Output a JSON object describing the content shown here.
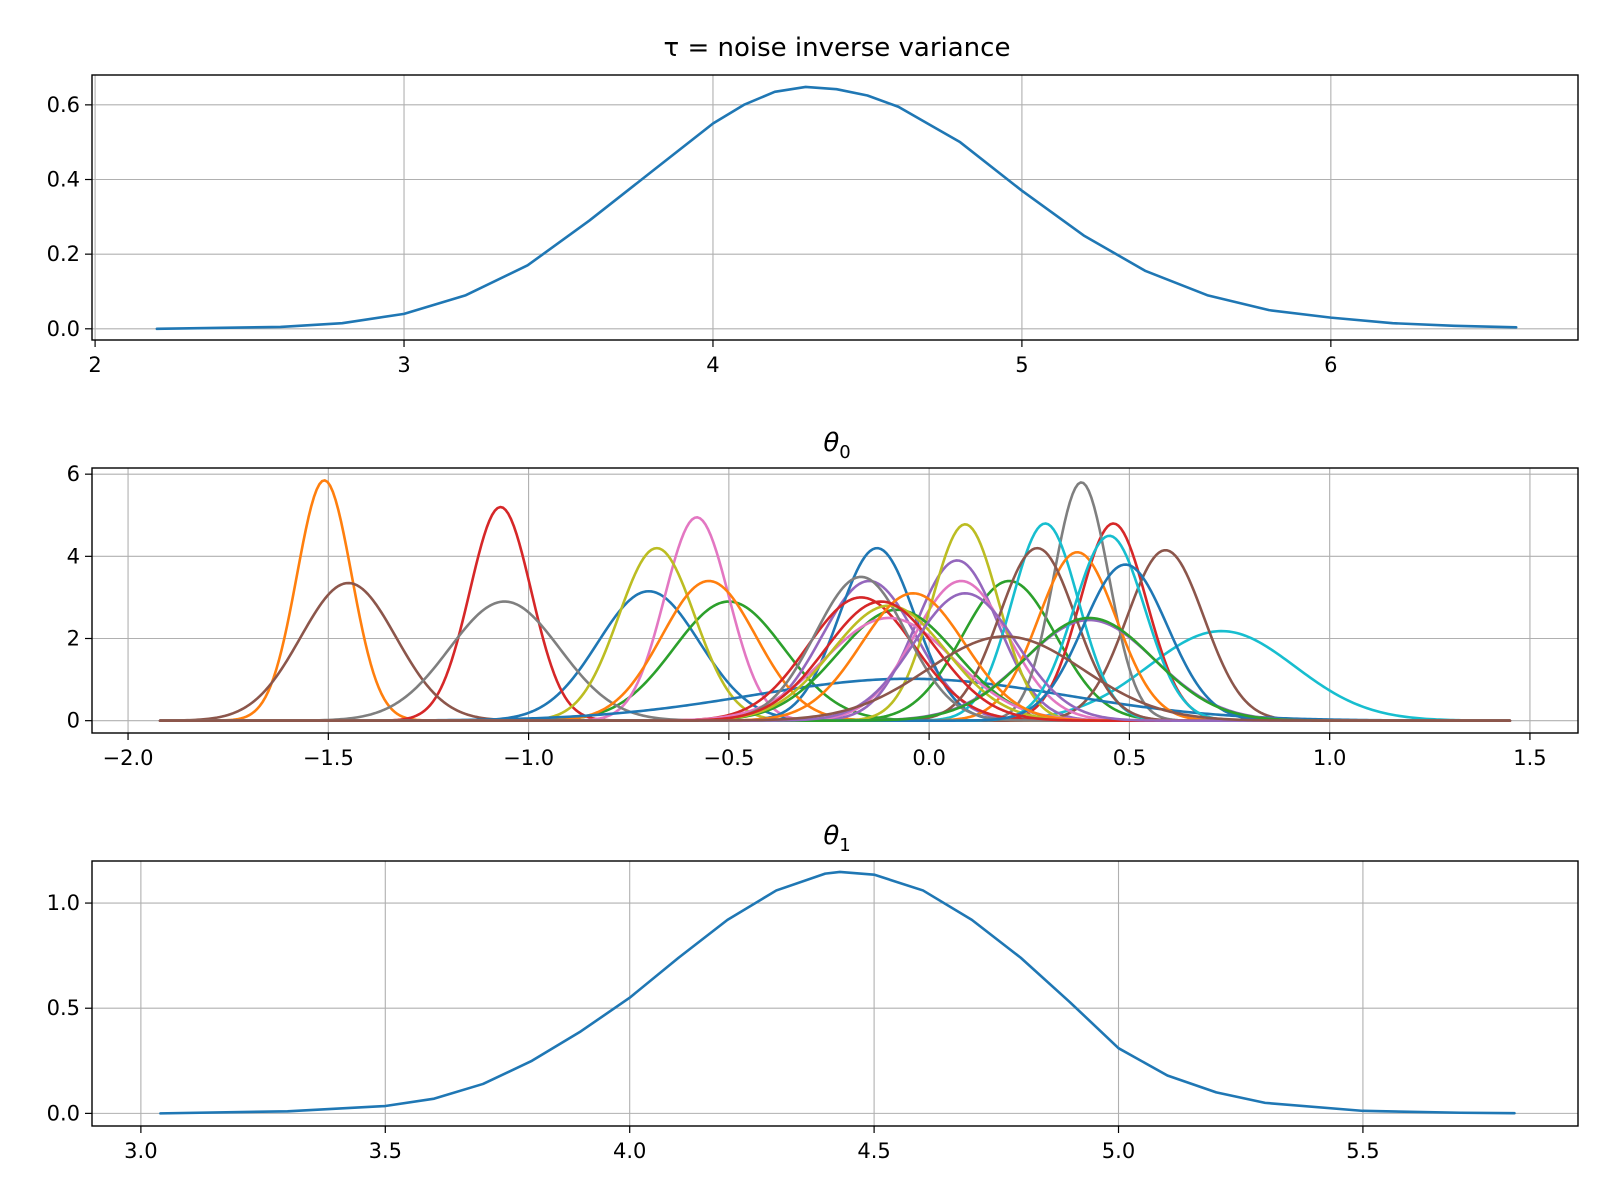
{
  "chart_data": [
    {
      "type": "line",
      "title": "τ = noise inverse variance",
      "xlabel": "",
      "ylabel": "",
      "xlim": [
        1.99,
        6.8
      ],
      "ylim": [
        -0.03,
        0.68
      ],
      "xticks": [
        2,
        3,
        4,
        5,
        6
      ],
      "xtick_labels": [
        "2",
        "3",
        "4",
        "5",
        "6"
      ],
      "yticks": [
        0.0,
        0.2,
        0.4,
        0.6
      ],
      "ytick_labels": [
        "0.0",
        "0.2",
        "0.4",
        "0.6"
      ],
      "grid": true,
      "legend": "none",
      "series": [
        {
          "color": "#1f77b4",
          "x": [
            2.2,
            2.6,
            2.8,
            3.0,
            3.2,
            3.4,
            3.6,
            3.8,
            4.0,
            4.1,
            4.2,
            4.3,
            4.4,
            4.5,
            4.6,
            4.8,
            5.0,
            5.2,
            5.4,
            5.6,
            5.8,
            6.0,
            6.2,
            6.4,
            6.6
          ],
          "y": [
            0.0,
            0.005,
            0.015,
            0.04,
            0.09,
            0.17,
            0.29,
            0.42,
            0.55,
            0.6,
            0.635,
            0.648,
            0.642,
            0.625,
            0.595,
            0.5,
            0.37,
            0.25,
            0.155,
            0.09,
            0.05,
            0.03,
            0.015,
            0.008,
            0.004
          ]
        }
      ]
    },
    {
      "type": "line",
      "title": "θ",
      "title_subscript": "0",
      "xlabel": "",
      "ylabel": "",
      "xlim": [
        -2.09,
        1.62
      ],
      "ylim": [
        -0.3,
        6.15
      ],
      "xticks": [
        -2.0,
        -1.5,
        -1.0,
        -0.5,
        0.0,
        0.5,
        1.0,
        1.5
      ],
      "xtick_labels": [
        "−2.0",
        "−1.5",
        "−1.0",
        "−0.5",
        "0.0",
        "0.5",
        "1.0",
        "1.5"
      ],
      "yticks": [
        0,
        2,
        4,
        6
      ],
      "ytick_labels": [
        "0",
        "2",
        "4",
        "6"
      ],
      "grid": true,
      "legend": "none",
      "x_range": [
        -1.92,
        1.45
      ],
      "series": [
        {
          "color": "#1f77b4",
          "mu": -0.7,
          "peak": 3.15
        },
        {
          "color": "#ff7f0e",
          "mu": -1.51,
          "peak": 5.85
        },
        {
          "color": "#2ca02c",
          "mu": -0.5,
          "peak": 2.9
        },
        {
          "color": "#d62728",
          "mu": -1.07,
          "peak": 5.2
        },
        {
          "color": "#9467bd",
          "mu": -0.15,
          "peak": 3.4
        },
        {
          "color": "#8c564b",
          "mu": -1.45,
          "peak": 3.35
        },
        {
          "color": "#e377c2",
          "mu": -0.58,
          "peak": 4.95
        },
        {
          "color": "#7f7f7f",
          "mu": -1.06,
          "peak": 2.9
        },
        {
          "color": "#bcbd22",
          "mu": -0.68,
          "peak": 4.2
        },
        {
          "color": "#17becf",
          "mu": 0.73,
          "peak": 2.18
        },
        {
          "color": "#1f77b4",
          "mu": -0.13,
          "peak": 4.2
        },
        {
          "color": "#ff7f0e",
          "mu": -0.55,
          "peak": 3.4
        },
        {
          "color": "#2ca02c",
          "mu": 0.2,
          "peak": 3.4
        },
        {
          "color": "#d62728",
          "mu": 0.46,
          "peak": 4.8
        },
        {
          "color": "#9467bd",
          "mu": 0.07,
          "peak": 3.9
        },
        {
          "color": "#8c564b",
          "mu": 0.59,
          "peak": 4.15
        },
        {
          "color": "#e377c2",
          "mu": 0.08,
          "peak": 3.4
        },
        {
          "color": "#7f7f7f",
          "mu": 0.38,
          "peak": 5.8
        },
        {
          "color": "#bcbd22",
          "mu": 0.09,
          "peak": 4.78
        },
        {
          "color": "#17becf",
          "mu": 0.29,
          "peak": 4.8
        },
        {
          "color": "#1f77b4",
          "mu": -0.05,
          "peak": 1.02
        },
        {
          "color": "#ff7f0e",
          "mu": 0.37,
          "peak": 4.1
        },
        {
          "color": "#2ca02c",
          "mu": -0.08,
          "peak": 2.7
        },
        {
          "color": "#d62728",
          "mu": -0.17,
          "peak": 3.0
        },
        {
          "color": "#9467bd",
          "mu": 0.4,
          "peak": 2.45
        },
        {
          "color": "#8c564b",
          "mu": 0.27,
          "peak": 4.2
        },
        {
          "color": "#e377c2",
          "mu": -0.1,
          "peak": 2.5
        },
        {
          "color": "#7f7f7f",
          "mu": -0.17,
          "peak": 3.5
        },
        {
          "color": "#bcbd22",
          "mu": -0.1,
          "peak": 2.8
        },
        {
          "color": "#17becf",
          "mu": 0.45,
          "peak": 4.5
        },
        {
          "color": "#1f77b4",
          "mu": 0.49,
          "peak": 3.8
        },
        {
          "color": "#ff7f0e",
          "mu": -0.04,
          "peak": 3.1
        },
        {
          "color": "#2ca02c",
          "mu": 0.4,
          "peak": 2.5
        },
        {
          "color": "#d62728",
          "mu": -0.12,
          "peak": 2.9
        },
        {
          "color": "#9467bd",
          "mu": 0.09,
          "peak": 3.1
        },
        {
          "color": "#8c564b",
          "mu": 0.19,
          "peak": 2.05
        }
      ]
    },
    {
      "type": "line",
      "title": "θ",
      "title_subscript": "1",
      "xlabel": "",
      "ylabel": "",
      "xlim": [
        2.9,
        5.94
      ],
      "ylim": [
        -0.06,
        1.2
      ],
      "xticks": [
        3.0,
        3.5,
        4.0,
        4.5,
        5.0,
        5.5
      ],
      "xtick_labels": [
        "3.0",
        "3.5",
        "4.0",
        "4.5",
        "5.0",
        "5.5"
      ],
      "yticks": [
        0.0,
        0.5,
        1.0
      ],
      "ytick_labels": [
        "0.0",
        "0.5",
        "1.0"
      ],
      "grid": true,
      "legend": "none",
      "series": [
        {
          "color": "#1f77b4",
          "x": [
            3.04,
            3.3,
            3.5,
            3.6,
            3.7,
            3.8,
            3.9,
            4.0,
            4.1,
            4.2,
            4.3,
            4.4,
            4.43,
            4.5,
            4.6,
            4.7,
            4.8,
            4.9,
            5.0,
            5.1,
            5.2,
            5.3,
            5.5,
            5.7,
            5.81
          ],
          "y": [
            0.0,
            0.01,
            0.035,
            0.07,
            0.14,
            0.25,
            0.39,
            0.55,
            0.74,
            0.92,
            1.06,
            1.14,
            1.148,
            1.135,
            1.06,
            0.92,
            0.74,
            0.53,
            0.31,
            0.18,
            0.1,
            0.05,
            0.012,
            0.003,
            0.001
          ]
        }
      ]
    }
  ]
}
